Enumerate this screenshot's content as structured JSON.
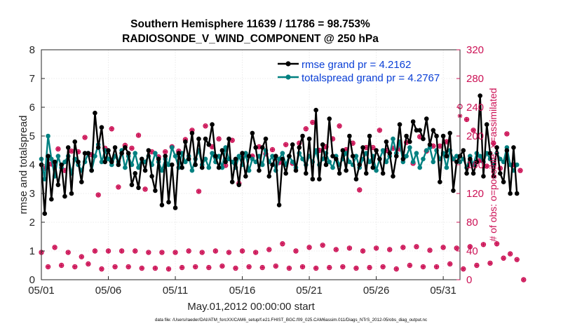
{
  "chart_data": {
    "type": "line",
    "title_line1": "Southern Hemisphere 11639 / 11786 = 98.753%",
    "title_line2": "RADIOSONDE_V_WIND_COMPONENT @ 250 hPa",
    "xlabel": "May.01,2012 00:00:00 start",
    "ylabel_left": "rmse and totalspread",
    "ylabel_right": "# of obs: o=possible; ×=assimilated",
    "footer": "data file: /Users/raeder/DAI/ATM_forcXX/CAM6_setup/f.e21.FHIST_BGC.f09_025.CAM6assim.011/Diags_NTrS_2012-05/obs_diag_output.nc",
    "x_range": [
      0,
      31.25
    ],
    "x_ticks": [
      0,
      5,
      10,
      15,
      20,
      25,
      30
    ],
    "x_tick_labels": [
      "05/01",
      "05/06",
      "05/11",
      "05/16",
      "05/21",
      "05/26",
      "05/31"
    ],
    "ylim_left": [
      0,
      8
    ],
    "y_ticks_left": [
      "0",
      "1",
      "2",
      "3",
      "4",
      "5",
      "6",
      "7",
      "8"
    ],
    "ylim_right": [
      0,
      320
    ],
    "y_ticks_right": [
      "0",
      "40",
      "80",
      "120",
      "160",
      "200",
      "240",
      "280",
      "320"
    ],
    "x_step_days": 0.25,
    "colors": {
      "rmse": "#000000",
      "spread": "#008080",
      "obs": "#cc1155",
      "legend_text": "#0a3fd6"
    },
    "series": [
      {
        "name": "rmse grand pr = 4.2162",
        "key": "rmse",
        "values": [
          4.0,
          2.3,
          4.3,
          2.8,
          4.1,
          3.3,
          4.0,
          2.9,
          4.6,
          3.0,
          4.8,
          4.1,
          3.4,
          4.4,
          4.4,
          3.8,
          5.8,
          4.6,
          5.3,
          4.1,
          4.5,
          4.1,
          4.6,
          4.0,
          4.4,
          4.6,
          4.4,
          3.3,
          3.7,
          3.2,
          4.2,
          3.8,
          4.5,
          3.6,
          3.1,
          4.2,
          2.6,
          4.3,
          2.7,
          4.0,
          2.5,
          4.4,
          3.9,
          4.8,
          4.2,
          5.1,
          4.0,
          4.9,
          3.9,
          4.9,
          4.7,
          5.4,
          4.3,
          3.9,
          4.5,
          4.1,
          4.9,
          3.4,
          4.2,
          3.3,
          4.4,
          3.6,
          4.3,
          5.1,
          4.6,
          3.8,
          4.6,
          4.9,
          3.6,
          4.0,
          4.3,
          2.6,
          4.2,
          3.7,
          4.3,
          4.7,
          3.8,
          4.6,
          5.0,
          3.7,
          4.9,
          3.5,
          5.9,
          3.5,
          4.7,
          4.0,
          5.6,
          4.3,
          4.2,
          3.7,
          4.5,
          3.8,
          5.0,
          4.3,
          3.5,
          4.0,
          4.6,
          3.7,
          5.0,
          3.9,
          4.5,
          4.2,
          3.7,
          4.8,
          4.4,
          3.6,
          4.3,
          5.4,
          4.2,
          5.0,
          4.8,
          5.5,
          5.2,
          5.2,
          4.9,
          5.6,
          4.7,
          5.2,
          5.0,
          3.4,
          5.0,
          4.3,
          5.1,
          3.1,
          4.1,
          4.3,
          4.5,
          3.7,
          4.2,
          3.7,
          4.1,
          6.4,
          3.6,
          5.4,
          4.4,
          3.6,
          4.6,
          3.7,
          3.4,
          4.5,
          3.0,
          4.6,
          3.0
        ]
      },
      {
        "name": "totalspread grand pr = 4.2767",
        "key": "spread",
        "values": [
          4.2,
          3.5,
          5.0,
          4.2,
          3.6,
          4.3,
          3.9,
          4.1,
          4.3,
          3.7,
          4.2,
          4.0,
          3.8,
          4.1,
          4.4,
          3.8,
          4.3,
          4.7,
          4.1,
          4.5,
          4.2,
          4.0,
          4.3,
          4.1,
          4.5,
          3.9,
          4.3,
          4.0,
          4.4,
          3.9,
          4.2,
          4.1,
          4.3,
          4.0,
          4.4,
          4.1,
          3.8,
          4.2,
          4.0,
          4.6,
          4.3,
          3.9,
          4.4,
          4.1,
          4.3,
          3.8,
          4.2,
          4.5,
          4.0,
          4.2,
          3.9,
          4.4,
          4.1,
          4.3,
          3.9,
          4.6,
          4.2,
          4.1,
          3.9,
          4.3,
          4.0,
          4.4,
          3.8,
          4.2,
          4.1,
          4.3,
          4.0,
          4.5,
          4.1,
          4.3,
          3.8,
          4.2,
          4.4,
          4.0,
          4.3,
          4.1,
          3.9,
          4.4,
          4.2,
          4.0,
          4.3,
          4.1,
          4.5,
          4.0,
          4.2,
          4.4,
          4.1,
          3.9,
          4.3,
          4.0,
          4.2,
          4.4,
          4.1,
          4.0,
          4.3,
          3.9,
          4.2,
          4.4,
          4.1,
          4.3,
          3.8,
          4.2,
          4.5,
          4.1,
          4.3,
          4.9,
          4.4,
          4.8,
          4.1,
          4.3,
          4.6,
          4.1,
          4.4,
          3.9,
          4.2,
          4.5,
          4.6,
          4.1,
          4.5,
          4.2,
          4.4,
          3.9,
          4.5,
          4.2,
          4.3,
          4.1,
          4.2,
          3.9,
          4.3,
          4.0,
          4.4,
          4.3,
          4.1,
          4.4,
          4.2,
          4.0,
          4.4,
          4.2,
          4.1,
          4.6,
          4.0,
          3.8,
          4.0
        ]
      },
      {
        "name": "obs possible",
        "key": "possible",
        "values": [
          38,
          155,
          18,
          161,
          45,
          182,
          20,
          152,
          38,
          179,
          18,
          178,
          32,
          198,
          22,
          174,
          40,
          118,
          15,
          183,
          40,
          210,
          18,
          129,
          40,
          187,
          18,
          183,
          40,
          201,
          16,
          126,
          38,
          178,
          16,
          171,
          38,
          178,
          15,
          185,
          38,
          179,
          17,
          195,
          40,
          208,
          18,
          123,
          38,
          214,
          17,
          185,
          40,
          196,
          19,
          159,
          38,
          194,
          16,
          134,
          40,
          174,
          18,
          172,
          38,
          185,
          17,
          175,
          42,
          181,
          19,
          163,
          50,
          188,
          16,
          162,
          40,
          190,
          18,
          210,
          45,
          219,
          16,
          180,
          48,
          185,
          17,
          196,
          42,
          214,
          18,
          181,
          44,
          190,
          16,
          125,
          40,
          184,
          17,
          184,
          44,
          208,
          18,
          180,
          42,
          183,
          15,
          182,
          45,
          191,
          20,
          162,
          46,
          199,
          18,
          179,
          41,
          186,
          18,
          186,
          45,
          192,
          22,
          168,
          44,
          241,
          15,
          223,
          46,
          208,
          20,
          166,
          49,
          158,
          23,
          190,
          50,
          155,
          30,
          203,
          36,
          160,
          28,
          152,
          0
        ]
      },
      {
        "name": "obs assimilated",
        "key": "assimilated",
        "values": [
          38,
          155,
          18,
          161,
          45,
          182,
          20,
          152,
          38,
          179,
          18,
          178,
          32,
          198,
          22,
          174,
          40,
          118,
          15,
          183,
          40,
          210,
          18,
          129,
          40,
          187,
          18,
          183,
          40,
          201,
          16,
          126,
          38,
          178,
          16,
          171,
          38,
          178,
          15,
          185,
          38,
          179,
          17,
          195,
          40,
          208,
          18,
          123,
          38,
          214,
          17,
          185,
          40,
          196,
          19,
          159,
          38,
          194,
          16,
          134,
          40,
          174,
          18,
          172,
          38,
          185,
          17,
          175,
          42,
          181,
          19,
          163,
          50,
          188,
          16,
          162,
          40,
          190,
          18,
          210,
          45,
          219,
          16,
          180,
          48,
          185,
          17,
          196,
          42,
          214,
          18,
          181,
          44,
          190,
          16,
          125,
          40,
          184,
          17,
          184,
          44,
          208,
          18,
          180,
          42,
          183,
          15,
          182,
          45,
          191,
          20,
          162,
          46,
          199,
          18,
          179,
          41,
          186,
          18,
          186,
          45,
          192,
          22,
          168,
          44,
          228,
          15,
          223,
          46,
          208,
          20,
          166,
          49,
          158,
          23,
          190,
          50,
          155,
          30,
          203,
          36,
          160,
          28,
          152,
          0
        ]
      }
    ],
    "legend_location": "top-right"
  }
}
